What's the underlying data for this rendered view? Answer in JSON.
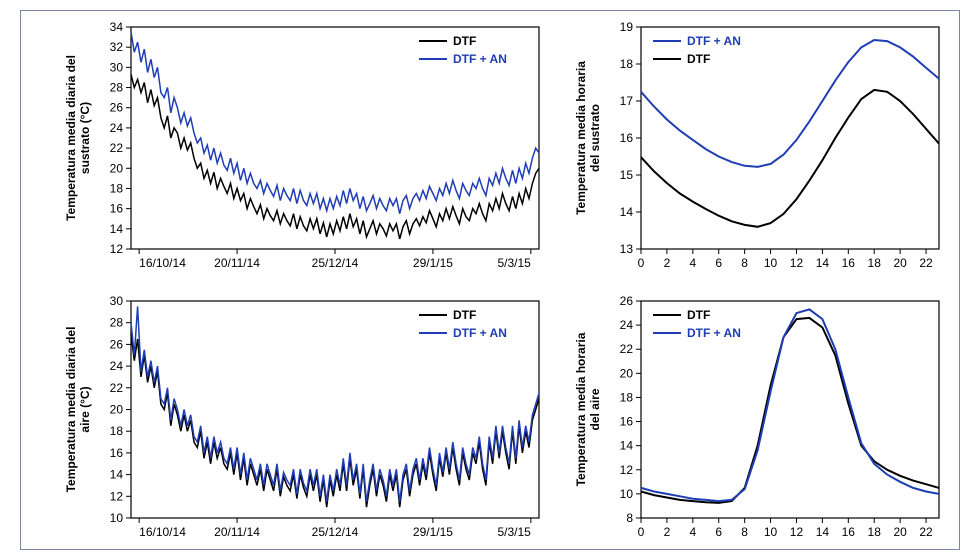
{
  "figure": {
    "outer_border_color": "#7a86a0",
    "background": "#ffffff",
    "font_family": "Arial",
    "panels": {
      "tl": {
        "type": "line",
        "ylabel": "Temperatura media diaria del\nsustrato (°C)",
        "label_fontsize": 12,
        "ylim": [
          12,
          34
        ],
        "ytick_step": 2,
        "xticks": [
          "16/10/14",
          "20/11/14",
          "25/12/14",
          "29/1/15",
          "5/3/15"
        ],
        "legend_pos": "top-right",
        "legend_fontsize": 12,
        "axis_color": "#000000",
        "series": [
          {
            "label": "DTF",
            "color": "#000000",
            "width": 1.5,
            "y": [
              29.3,
              28.0,
              28.8,
              27.5,
              28.5,
              26.5,
              27.8,
              26.2,
              27.0,
              25.0,
              24.0,
              25.2,
              23.0,
              24.0,
              23.5,
              22.0,
              23.0,
              21.8,
              22.5,
              21.0,
              20.0,
              20.5,
              19.0,
              19.8,
              18.5,
              19.6,
              18.0,
              19.0,
              18.2,
              17.5,
              18.5,
              17.0,
              18.0,
              16.8,
              17.5,
              16.0,
              17.0,
              16.2,
              15.5,
              16.4,
              15.0,
              16.0,
              15.3,
              14.8,
              15.8,
              14.5,
              15.5,
              14.8,
              14.3,
              15.5,
              14.0,
              15.2,
              14.3,
              13.8,
              15.0,
              14.0,
              15.0,
              13.5,
              14.6,
              13.2,
              14.5,
              13.5,
              14.8,
              13.8,
              15.2,
              14.0,
              15.5,
              14.2,
              15.0,
              13.5,
              14.8,
              13.2,
              14.0,
              14.8,
              13.5,
              14.5,
              14.0,
              13.3,
              14.5,
              13.8,
              14.5,
              13.0,
              14.2,
              14.8,
              13.5,
              14.5,
              15.0,
              14.3,
              15.2,
              14.6,
              15.8,
              15.0,
              14.2,
              15.5,
              14.8,
              16.0,
              15.0,
              16.2,
              15.3,
              14.5,
              16.0,
              15.2,
              14.8,
              16.0,
              15.5,
              16.5,
              15.5,
              14.8,
              16.5,
              15.8,
              17.0,
              16.0,
              17.5,
              16.5,
              15.8,
              17.2,
              16.0,
              17.5,
              16.5,
              18.0,
              17.0,
              18.5,
              19.5,
              20.0
            ]
          },
          {
            "label": "DTF + AN",
            "color": "#1f3db5",
            "width": 1.5,
            "y": [
              33.5,
              31.5,
              32.5,
              30.5,
              31.8,
              29.5,
              30.8,
              29.0,
              30.0,
              27.5,
              27.0,
              28.0,
              25.5,
              27.0,
              26.0,
              24.5,
              25.5,
              24.2,
              25.0,
              23.5,
              22.5,
              23.0,
              21.5,
              22.3,
              20.8,
              22.0,
              20.5,
              21.5,
              20.3,
              19.8,
              21.0,
              19.5,
              20.5,
              18.8,
              20.0,
              18.5,
              19.5,
              18.5,
              18.0,
              18.8,
              17.5,
              18.5,
              17.8,
              17.2,
              18.3,
              16.8,
              18.0,
              17.3,
              16.8,
              18.0,
              16.5,
              17.8,
              16.8,
              16.3,
              17.5,
              16.5,
              17.5,
              16.0,
              17.0,
              15.8,
              17.0,
              16.0,
              17.2,
              16.3,
              17.8,
              16.5,
              18.0,
              16.8,
              17.5,
              16.0,
              17.2,
              15.8,
              16.5,
              17.3,
              16.0,
              17.0,
              16.3,
              15.8,
              17.0,
              16.3,
              17.0,
              15.5,
              16.8,
              17.3,
              16.0,
              17.0,
              17.5,
              16.8,
              17.8,
              17.0,
              18.2,
              17.5,
              16.8,
              18.0,
              17.3,
              18.5,
              17.5,
              18.8,
              17.8,
              17.0,
              18.5,
              17.8,
              17.3,
              18.5,
              18.0,
              19.0,
              18.0,
              17.3,
              19.0,
              18.3,
              19.5,
              18.5,
              20.0,
              19.0,
              18.3,
              19.8,
              18.5,
              20.0,
              19.0,
              20.5,
              19.5,
              21.0,
              22.0,
              21.5
            ]
          }
        ]
      },
      "tr": {
        "type": "line",
        "ylabel": "Temperatura media horaria\ndel sustrato",
        "label_fontsize": 12,
        "ylim": [
          13,
          19
        ],
        "ytick_step": 1,
        "xlim": [
          0,
          23
        ],
        "xtick_step": 2,
        "legend_pos": "top-left",
        "legend_fontsize": 12,
        "axis_color": "#000000",
        "series": [
          {
            "label": "DTF + AN",
            "color": "#1f3db5",
            "width": 2,
            "y": [
              17.25,
              16.85,
              16.5,
              16.2,
              15.95,
              15.7,
              15.5,
              15.35,
              15.25,
              15.22,
              15.3,
              15.55,
              15.95,
              16.45,
              17.0,
              17.55,
              18.05,
              18.45,
              18.65,
              18.62,
              18.45,
              18.2,
              17.9,
              17.6
            ]
          },
          {
            "label": "DTF",
            "color": "#000000",
            "width": 2,
            "y": [
              15.48,
              15.1,
              14.78,
              14.5,
              14.28,
              14.08,
              13.9,
              13.75,
              13.65,
              13.6,
              13.7,
              13.95,
              14.35,
              14.85,
              15.4,
              16.0,
              16.55,
              17.05,
              17.3,
              17.25,
              17.0,
              16.65,
              16.25,
              15.85
            ]
          }
        ]
      },
      "bl": {
        "type": "line",
        "ylabel": "Temperatura media diaria del\naire (°C)",
        "label_fontsize": 12,
        "ylim": [
          10,
          30
        ],
        "ytick_step": 2,
        "xticks": [
          "16/10/14",
          "20/11/14",
          "25/12/14",
          "29/1/15",
          "5/3/15"
        ],
        "legend_pos": "top-right",
        "legend_fontsize": 12,
        "axis_color": "#000000",
        "series": [
          {
            "label": "DTF",
            "color": "#000000",
            "width": 1.5,
            "y": [
              27.0,
              24.5,
              26.5,
              23.0,
              25.0,
              22.5,
              24.0,
              22.0,
              23.5,
              20.5,
              20.0,
              21.5,
              18.5,
              20.5,
              19.5,
              18.0,
              19.5,
              18.0,
              19.0,
              17.0,
              16.5,
              18.0,
              15.5,
              17.0,
              15.0,
              17.0,
              15.5,
              16.5,
              15.0,
              14.5,
              16.0,
              14.0,
              16.0,
              13.5,
              15.5,
              13.0,
              15.0,
              14.0,
              13.0,
              14.5,
              12.5,
              14.5,
              13.5,
              12.5,
              14.5,
              12.0,
              13.8,
              13.0,
              12.5,
              14.0,
              11.8,
              14.0,
              12.8,
              12.0,
              14.0,
              12.5,
              14.0,
              11.5,
              13.5,
              11.0,
              13.5,
              12.0,
              14.0,
              12.5,
              15.0,
              12.5,
              15.5,
              13.0,
              14.5,
              11.8,
              14.5,
              11.0,
              13.0,
              14.5,
              12.0,
              14.0,
              13.0,
              11.5,
              14.0,
              12.5,
              14.0,
              11.0,
              13.5,
              14.5,
              12.0,
              14.0,
              15.0,
              13.0,
              15.0,
              13.5,
              16.0,
              14.0,
              12.5,
              15.5,
              13.8,
              16.0,
              14.0,
              16.5,
              14.5,
              13.0,
              16.0,
              14.5,
              13.5,
              16.0,
              15.0,
              17.0,
              14.5,
              13.0,
              17.0,
              15.0,
              18.0,
              15.5,
              18.0,
              16.0,
              14.5,
              18.0,
              15.0,
              18.5,
              16.0,
              18.0,
              16.5,
              19.0,
              20.0,
              21.0
            ]
          },
          {
            "label": "DTF + AN",
            "color": "#1f3db5",
            "width": 1.5,
            "y": [
              28.0,
              25.0,
              29.5,
              23.5,
              25.5,
              23.0,
              24.5,
              22.5,
              24.0,
              21.0,
              20.5,
              22.0,
              19.0,
              21.0,
              20.0,
              18.5,
              20.0,
              18.5,
              19.5,
              17.5,
              17.0,
              18.5,
              16.0,
              17.5,
              15.5,
              17.5,
              16.0,
              17.0,
              15.5,
              15.0,
              16.5,
              14.5,
              16.5,
              14.0,
              16.0,
              13.5,
              15.5,
              14.5,
              13.5,
              15.0,
              13.0,
              15.0,
              14.0,
              13.0,
              15.0,
              12.5,
              14.2,
              13.5,
              13.0,
              14.5,
              12.2,
              14.5,
              13.2,
              12.5,
              14.5,
              13.0,
              14.5,
              12.0,
              14.0,
              11.5,
              14.0,
              12.5,
              14.5,
              13.0,
              15.5,
              13.0,
              16.0,
              13.5,
              15.0,
              12.2,
              15.0,
              11.5,
              13.5,
              15.0,
              12.5,
              14.5,
              13.5,
              12.0,
              14.5,
              13.0,
              14.5,
              11.5,
              14.0,
              15.0,
              12.5,
              14.5,
              15.5,
              13.5,
              15.5,
              14.0,
              16.5,
              14.5,
              13.0,
              16.0,
              14.2,
              16.5,
              14.5,
              17.0,
              15.0,
              13.5,
              16.5,
              15.0,
              14.0,
              16.5,
              15.5,
              17.5,
              15.0,
              13.5,
              17.5,
              15.5,
              18.5,
              16.0,
              18.5,
              16.5,
              15.0,
              18.5,
              15.5,
              19.0,
              16.5,
              18.5,
              17.0,
              19.5,
              20.5,
              21.5
            ]
          }
        ]
      },
      "br": {
        "type": "line",
        "ylabel": "Temperatura media horaria\ndel aire",
        "label_fontsize": 12,
        "ylim": [
          8,
          26
        ],
        "ytick_step": 2,
        "xlim": [
          0,
          23
        ],
        "xtick_step": 2,
        "legend_pos": "top-left",
        "legend_fontsize": 12,
        "axis_color": "#000000",
        "series": [
          {
            "label": "DTF",
            "color": "#000000",
            "width": 2,
            "y": [
              10.2,
              9.9,
              9.7,
              9.5,
              9.4,
              9.3,
              9.25,
              9.4,
              10.5,
              14.0,
              19.0,
              23.0,
              24.5,
              24.6,
              23.8,
              21.5,
              17.5,
              14.0,
              12.7,
              12.0,
              11.5,
              11.1,
              10.8,
              10.5
            ]
          },
          {
            "label": "DTF + AN",
            "color": "#1f3db5",
            "width": 2,
            "y": [
              10.5,
              10.2,
              10.0,
              9.8,
              9.6,
              9.5,
              9.4,
              9.5,
              10.4,
              13.6,
              18.5,
              23.0,
              25.0,
              25.3,
              24.5,
              22.0,
              18.0,
              14.2,
              12.5,
              11.6,
              11.0,
              10.5,
              10.2,
              10.0
            ]
          }
        ]
      }
    }
  }
}
